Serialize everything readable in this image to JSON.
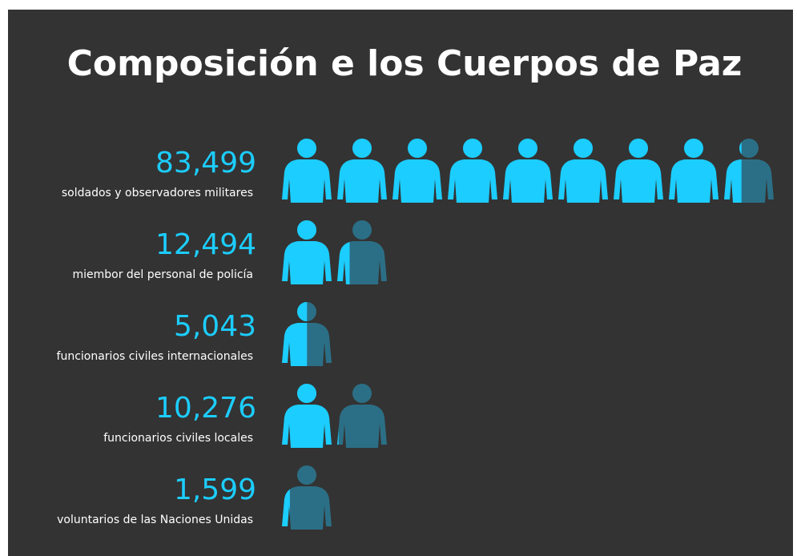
{
  "chart_data": {
    "type": "pictograph",
    "title": "Composición e los Cuerpos de Paz",
    "categories": [
      "soldados y observadores militares",
      "miembor del personal de policía",
      "funcionarios civiles internacionales",
      "funcionarios civiles locales",
      "voluntarios de las Naciones Unidas"
    ],
    "values": [
      83499,
      12494,
      5043,
      10276,
      1599
    ],
    "value_labels": [
      "83,499",
      "12,494",
      "5,043",
      "10,276",
      "1,599"
    ],
    "color": "#1ccdff",
    "empty_color": "#2b6f86"
  }
}
